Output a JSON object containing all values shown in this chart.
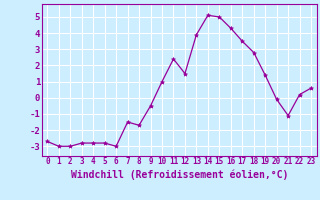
{
  "x": [
    0,
    1,
    2,
    3,
    4,
    5,
    6,
    7,
    8,
    9,
    10,
    11,
    12,
    13,
    14,
    15,
    16,
    17,
    18,
    19,
    20,
    21,
    22,
    23
  ],
  "y": [
    -2.7,
    -3.0,
    -3.0,
    -2.8,
    -2.8,
    -2.8,
    -3.0,
    -1.5,
    -1.7,
    -0.5,
    1.0,
    2.4,
    1.5,
    3.9,
    5.1,
    5.0,
    4.3,
    3.5,
    2.8,
    1.4,
    -0.1,
    -1.1,
    0.2,
    0.6
  ],
  "line_color": "#990099",
  "marker": "*",
  "marker_size": 3,
  "bg_color": "#cceeff",
  "grid_color": "#ffffff",
  "xlabel": "Windchill (Refroidissement éolien,°C)",
  "ylabel_ticks": [
    -3,
    -2,
    -1,
    0,
    1,
    2,
    3,
    4,
    5
  ],
  "ylim": [
    -3.6,
    5.8
  ],
  "xlim": [
    -0.5,
    23.5
  ],
  "xtick_fontsize": 5.5,
  "ytick_fontsize": 6.5,
  "xlabel_fontsize": 7,
  "tick_color": "#990099",
  "spine_color": "#990099"
}
